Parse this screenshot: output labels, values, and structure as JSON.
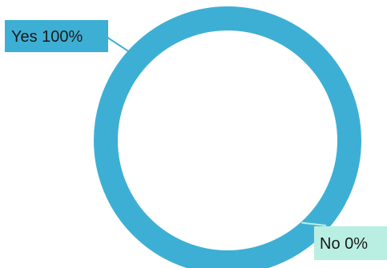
{
  "chart_data": {
    "type": "donut",
    "slices": [
      {
        "label": "Yes",
        "value": 100,
        "value_label": "100%",
        "color": "#3eafd4",
        "label_text_color": "#1a1a1a"
      },
      {
        "label": "No",
        "value": 0,
        "value_label": "0%",
        "color": "#b9efe3",
        "label_text_color": "#1a1a1a"
      }
    ],
    "label_style": "label-box with leader line",
    "background": "#ffffff"
  }
}
